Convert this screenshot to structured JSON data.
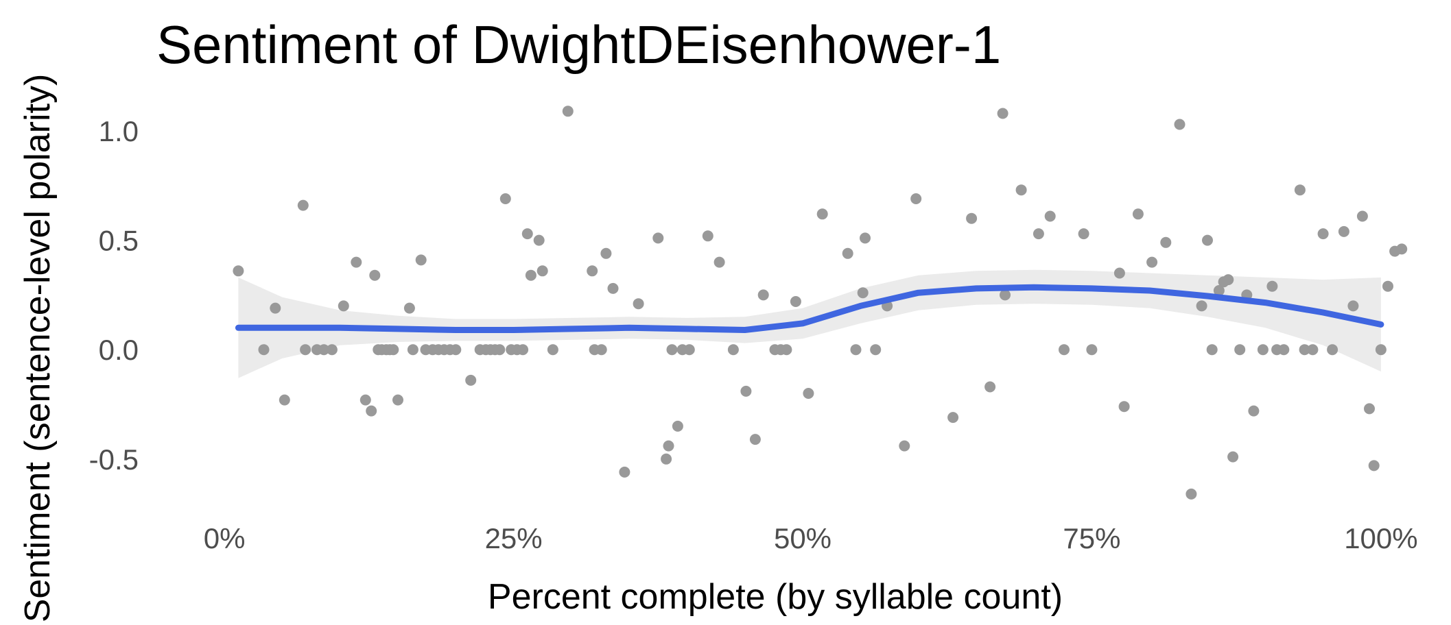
{
  "chart_data": {
    "type": "scatter",
    "title": "Sentiment of DwightDEisenhower-1",
    "xlabel": "Percent complete (by syllable count)",
    "ylabel": "Sentiment (sentence-level polarity)",
    "xlim": [
      -0.025,
      1.025
    ],
    "ylim": [
      -0.72,
      1.16
    ],
    "x_ticks": [
      {
        "value": 0,
        "label": "0%"
      },
      {
        "value": 0.25,
        "label": "25%"
      },
      {
        "value": 0.5,
        "label": "50%"
      },
      {
        "value": 0.75,
        "label": "75%"
      },
      {
        "value": 1,
        "label": "100%"
      }
    ],
    "y_ticks": [
      {
        "value": -0.5,
        "label": "-0.5"
      },
      {
        "value": 0,
        "label": "0.0"
      },
      {
        "value": 0.5,
        "label": "0.5"
      },
      {
        "value": 1,
        "label": "1.0"
      }
    ],
    "grid": false,
    "colors": {
      "points": "#999999",
      "smooth_line": "#3f66e0",
      "confidence_band": "#ebebeb",
      "title": "#000000",
      "tick_labels": "#4d4d4d"
    },
    "points": [
      {
        "x": 0.012,
        "y": 0.36
      },
      {
        "x": 0.034,
        "y": 0.0
      },
      {
        "x": 0.044,
        "y": 0.19
      },
      {
        "x": 0.052,
        "y": -0.23
      },
      {
        "x": 0.068,
        "y": 0.66
      },
      {
        "x": 0.07,
        "y": 0.0
      },
      {
        "x": 0.08,
        "y": 0.0
      },
      {
        "x": 0.086,
        "y": 0.0
      },
      {
        "x": 0.093,
        "y": 0.0
      },
      {
        "x": 0.103,
        "y": 0.2
      },
      {
        "x": 0.114,
        "y": 0.4
      },
      {
        "x": 0.122,
        "y": -0.23
      },
      {
        "x": 0.127,
        "y": -0.28
      },
      {
        "x": 0.13,
        "y": 0.34
      },
      {
        "x": 0.133,
        "y": 0.0
      },
      {
        "x": 0.136,
        "y": 0.0
      },
      {
        "x": 0.14,
        "y": 0.0
      },
      {
        "x": 0.143,
        "y": 0.0
      },
      {
        "x": 0.146,
        "y": 0.0
      },
      {
        "x": 0.15,
        "y": -0.23
      },
      {
        "x": 0.16,
        "y": 0.19
      },
      {
        "x": 0.163,
        "y": 0.0
      },
      {
        "x": 0.17,
        "y": 0.41
      },
      {
        "x": 0.174,
        "y": 0.0
      },
      {
        "x": 0.18,
        "y": 0.0
      },
      {
        "x": 0.185,
        "y": 0.0
      },
      {
        "x": 0.19,
        "y": 0.0
      },
      {
        "x": 0.195,
        "y": 0.0
      },
      {
        "x": 0.2,
        "y": 0.0
      },
      {
        "x": 0.213,
        "y": -0.14
      },
      {
        "x": 0.221,
        "y": 0.0
      },
      {
        "x": 0.226,
        "y": 0.0
      },
      {
        "x": 0.23,
        "y": 0.0
      },
      {
        "x": 0.234,
        "y": 0.0
      },
      {
        "x": 0.238,
        "y": 0.0
      },
      {
        "x": 0.243,
        "y": 0.69
      },
      {
        "x": 0.248,
        "y": 0.0
      },
      {
        "x": 0.253,
        "y": 0.0
      },
      {
        "x": 0.258,
        "y": 0.0
      },
      {
        "x": 0.262,
        "y": 0.53
      },
      {
        "x": 0.265,
        "y": 0.34
      },
      {
        "x": 0.272,
        "y": 0.5
      },
      {
        "x": 0.275,
        "y": 0.36
      },
      {
        "x": 0.284,
        "y": 0.0
      },
      {
        "x": 0.297,
        "y": 1.09
      },
      {
        "x": 0.318,
        "y": 0.36
      },
      {
        "x": 0.32,
        "y": 0.0
      },
      {
        "x": 0.326,
        "y": 0.0
      },
      {
        "x": 0.33,
        "y": 0.44
      },
      {
        "x": 0.336,
        "y": 0.28
      },
      {
        "x": 0.346,
        "y": -0.56
      },
      {
        "x": 0.358,
        "y": 0.21
      },
      {
        "x": 0.375,
        "y": 0.51
      },
      {
        "x": 0.382,
        "y": -0.5
      },
      {
        "x": 0.384,
        "y": -0.44
      },
      {
        "x": 0.387,
        "y": 0.0
      },
      {
        "x": 0.392,
        "y": -0.35
      },
      {
        "x": 0.396,
        "y": 0.0
      },
      {
        "x": 0.402,
        "y": 0.0
      },
      {
        "x": 0.418,
        "y": 0.52
      },
      {
        "x": 0.428,
        "y": 0.4
      },
      {
        "x": 0.44,
        "y": 0.0
      },
      {
        "x": 0.451,
        "y": -0.19
      },
      {
        "x": 0.459,
        "y": -0.41
      },
      {
        "x": 0.466,
        "y": 0.25
      },
      {
        "x": 0.476,
        "y": 0.0
      },
      {
        "x": 0.481,
        "y": 0.0
      },
      {
        "x": 0.486,
        "y": 0.0
      },
      {
        "x": 0.494,
        "y": 0.22
      },
      {
        "x": 0.505,
        "y": -0.2
      },
      {
        "x": 0.517,
        "y": 0.62
      },
      {
        "x": 0.539,
        "y": 0.44
      },
      {
        "x": 0.546,
        "y": 0.0
      },
      {
        "x": 0.552,
        "y": 0.26
      },
      {
        "x": 0.554,
        "y": 0.51
      },
      {
        "x": 0.563,
        "y": 0.0
      },
      {
        "x": 0.573,
        "y": 0.2
      },
      {
        "x": 0.588,
        "y": -0.44
      },
      {
        "x": 0.598,
        "y": 0.69
      },
      {
        "x": 0.63,
        "y": -0.31
      },
      {
        "x": 0.646,
        "y": 0.6
      },
      {
        "x": 0.662,
        "y": -0.17
      },
      {
        "x": 0.673,
        "y": 1.08
      },
      {
        "x": 0.675,
        "y": 0.25
      },
      {
        "x": 0.689,
        "y": 0.73
      },
      {
        "x": 0.704,
        "y": 0.53
      },
      {
        "x": 0.714,
        "y": 0.61
      },
      {
        "x": 0.726,
        "y": 0.0
      },
      {
        "x": 0.743,
        "y": 0.53
      },
      {
        "x": 0.75,
        "y": 0.0
      },
      {
        "x": 0.774,
        "y": 0.35
      },
      {
        "x": 0.778,
        "y": -0.26
      },
      {
        "x": 0.79,
        "y": 0.62
      },
      {
        "x": 0.802,
        "y": 0.4
      },
      {
        "x": 0.814,
        "y": 0.49
      },
      {
        "x": 0.826,
        "y": 1.03
      },
      {
        "x": 0.836,
        "y": -0.66
      },
      {
        "x": 0.845,
        "y": 0.2
      },
      {
        "x": 0.85,
        "y": 0.5
      },
      {
        "x": 0.854,
        "y": 0.0
      },
      {
        "x": 0.86,
        "y": 0.27
      },
      {
        "x": 0.864,
        "y": 0.31
      },
      {
        "x": 0.868,
        "y": 0.32
      },
      {
        "x": 0.872,
        "y": -0.49
      },
      {
        "x": 0.878,
        "y": 0.0
      },
      {
        "x": 0.884,
        "y": 0.25
      },
      {
        "x": 0.89,
        "y": -0.28
      },
      {
        "x": 0.898,
        "y": 0.0
      },
      {
        "x": 0.906,
        "y": 0.29
      },
      {
        "x": 0.91,
        "y": 0.0
      },
      {
        "x": 0.916,
        "y": 0.0
      },
      {
        "x": 0.93,
        "y": 0.73
      },
      {
        "x": 0.934,
        "y": 0.0
      },
      {
        "x": 0.941,
        "y": 0.0
      },
      {
        "x": 0.95,
        "y": 0.53
      },
      {
        "x": 0.958,
        "y": 0.0
      },
      {
        "x": 0.968,
        "y": 0.54
      },
      {
        "x": 0.976,
        "y": 0.2
      },
      {
        "x": 0.984,
        "y": 0.61
      },
      {
        "x": 0.99,
        "y": -0.27
      },
      {
        "x": 0.994,
        "y": -0.53
      },
      {
        "x": 1.0,
        "y": 0.0
      },
      {
        "x": 1.006,
        "y": 0.29
      },
      {
        "x": 1.012,
        "y": 0.45
      },
      {
        "x": 1.018,
        "y": 0.46
      }
    ],
    "smooth": {
      "method": "loess",
      "x": [
        0.012,
        0.05,
        0.1,
        0.15,
        0.2,
        0.25,
        0.3,
        0.35,
        0.4,
        0.45,
        0.5,
        0.55,
        0.6,
        0.65,
        0.7,
        0.75,
        0.8,
        0.85,
        0.9,
        0.95,
        1.0
      ],
      "y": [
        0.1,
        0.1,
        0.1,
        0.095,
        0.09,
        0.09,
        0.095,
        0.1,
        0.095,
        0.09,
        0.12,
        0.2,
        0.26,
        0.28,
        0.285,
        0.28,
        0.27,
        0.245,
        0.215,
        0.17,
        0.115
      ],
      "lower": [
        -0.13,
        -0.04,
        0.02,
        0.035,
        0.04,
        0.04,
        0.045,
        0.05,
        0.045,
        0.03,
        0.05,
        0.12,
        0.18,
        0.205,
        0.21,
        0.205,
        0.19,
        0.15,
        0.1,
        0.02,
        -0.1
      ],
      "upper": [
        0.33,
        0.24,
        0.18,
        0.155,
        0.14,
        0.14,
        0.145,
        0.15,
        0.145,
        0.15,
        0.19,
        0.28,
        0.34,
        0.36,
        0.365,
        0.36,
        0.35,
        0.34,
        0.33,
        0.32,
        0.33
      ]
    }
  }
}
